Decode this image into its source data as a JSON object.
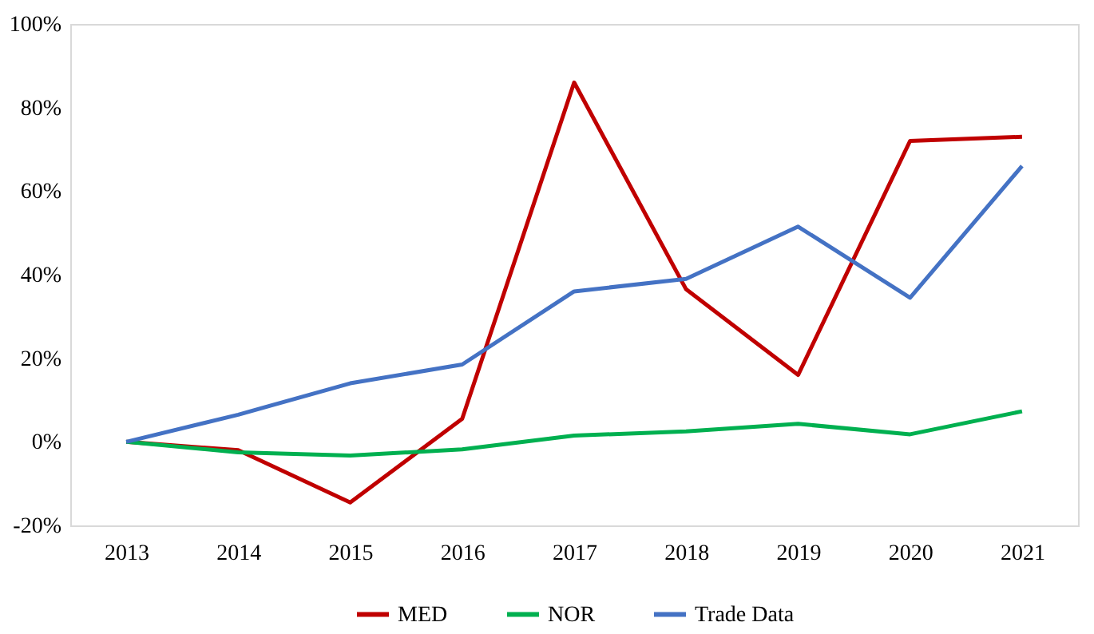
{
  "chart_data": {
    "type": "line",
    "categories": [
      "2013",
      "2014",
      "2015",
      "2016",
      "2017",
      "2018",
      "2019",
      "2020",
      "2021"
    ],
    "series": [
      {
        "name": "MED",
        "color": "#c00000",
        "values": [
          0,
          -2,
          -14.5,
          5.5,
          86,
          36.5,
          16,
          72,
          73
        ]
      },
      {
        "name": "NOR",
        "color": "#00b050",
        "values": [
          0,
          -2.5,
          -3.3,
          -1.8,
          1.5,
          2.5,
          4.3,
          1.8,
          7.3
        ]
      },
      {
        "name": "Trade Data",
        "color": "#4472c4",
        "values": [
          0,
          6.5,
          14,
          18.5,
          36,
          39,
          51.5,
          34.5,
          66
        ]
      }
    ],
    "ylim": [
      -20,
      100
    ],
    "yticks": [
      {
        "value": -20,
        "label": "-20%"
      },
      {
        "value": 0,
        "label": "0%"
      },
      {
        "value": 20,
        "label": "20%"
      },
      {
        "value": 40,
        "label": "40%"
      },
      {
        "value": 60,
        "label": "60%"
      },
      {
        "value": 80,
        "label": "80%"
      },
      {
        "value": 100,
        "label": "100%"
      }
    ],
    "grid": false,
    "legend": "bottom",
    "marker": "none",
    "line_style": "solid"
  }
}
